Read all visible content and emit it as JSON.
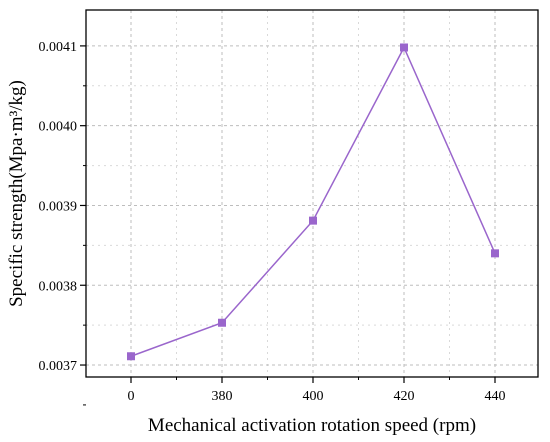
{
  "chart_data": {
    "type": "line",
    "categories": [
      "0",
      "380",
      "400",
      "420",
      "440"
    ],
    "series": [
      {
        "values": [
          0.003711,
          0.003753,
          0.003881,
          0.004098,
          0.00384
        ]
      }
    ],
    "xlabel": "Mechanical activation rotation speed (rpm)",
    "ylabel": "Specific strength(Mpa·m³/kg)",
    "ylim": [
      0.003685,
      0.004145
    ],
    "yticks": [
      "0.0037",
      "0.0038",
      "0.0039",
      "0.0040",
      "0.0041"
    ],
    "grid": true,
    "legend": "none",
    "colors": {
      "series": "#9a66cc",
      "marker": "#9a66cc",
      "axis": "#000000",
      "grid": "#bdbdbd"
    }
  }
}
